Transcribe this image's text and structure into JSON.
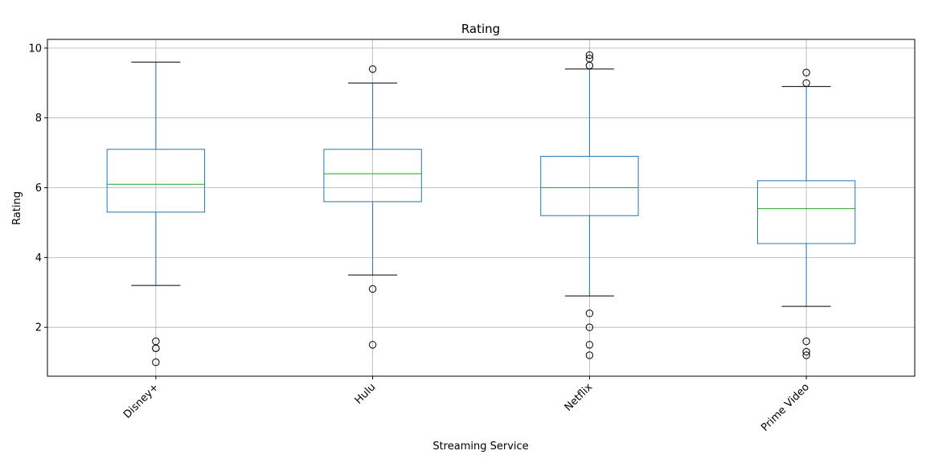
{
  "chart_data": {
    "type": "box",
    "title": "Rating",
    "xlabel": "Streaming Service",
    "ylabel": "Rating",
    "ylim": [
      0.6,
      10.25
    ],
    "yticks": [
      2,
      4,
      6,
      8,
      10
    ],
    "grid": true,
    "categories": [
      "Disney+",
      "Hulu",
      "Netflix",
      "Prime Video"
    ],
    "boxes": [
      {
        "category": "Disney+",
        "whisker_low": 3.2,
        "q1": 5.3,
        "median": 6.1,
        "q3": 7.1,
        "whisker_high": 9.6,
        "outliers": [
          1.6,
          1.4,
          1.4,
          1.0
        ]
      },
      {
        "category": "Hulu",
        "whisker_low": 3.5,
        "q1": 5.6,
        "median": 6.4,
        "q3": 7.1,
        "whisker_high": 9.0,
        "outliers": [
          9.4,
          3.1,
          1.5
        ]
      },
      {
        "category": "Netflix",
        "whisker_low": 2.9,
        "q1": 5.2,
        "median": 6.0,
        "q3": 6.9,
        "whisker_high": 9.4,
        "outliers": [
          9.8,
          9.7,
          9.5,
          2.4,
          2.0,
          1.5,
          1.2
        ]
      },
      {
        "category": "Prime Video",
        "whisker_low": 2.6,
        "q1": 4.4,
        "median": 5.4,
        "q3": 6.2,
        "whisker_high": 8.9,
        "outliers": [
          9.3,
          9.0,
          1.6,
          1.3,
          1.2
        ]
      }
    ],
    "colors": {
      "box": "#1f77b4",
      "median": "#2ca02c",
      "whisker_cap": "#000000",
      "grid": "#b0b0b0",
      "outlier": "#000000"
    }
  }
}
